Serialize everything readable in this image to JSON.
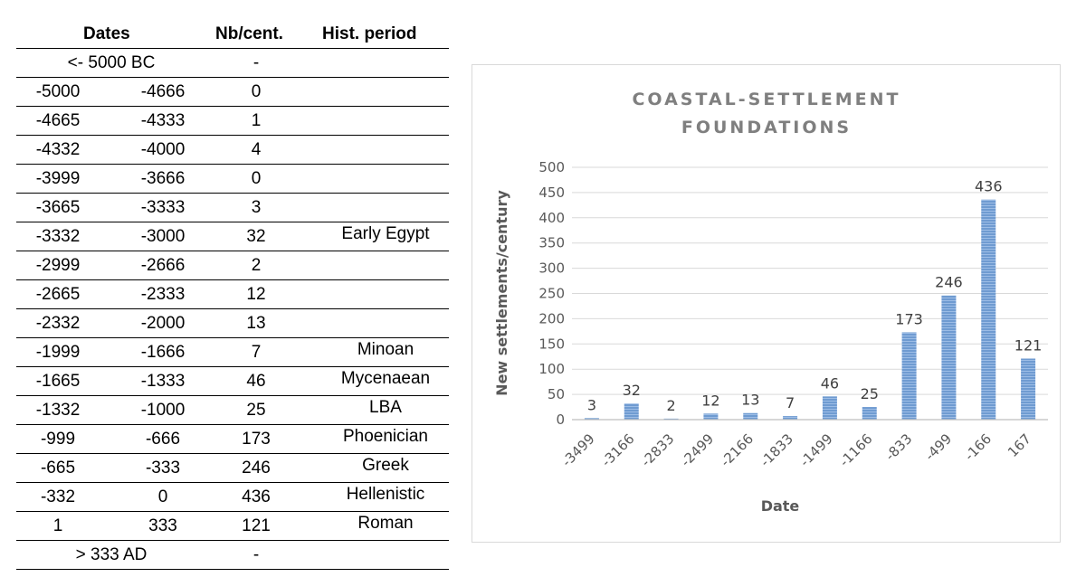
{
  "table": {
    "headers": {
      "dates": "Dates",
      "nb": "Nb/cent.",
      "period": "Hist. period"
    },
    "rows": [
      {
        "span": "<- 5000 BC",
        "nb": "-"
      },
      {
        "start": "-5000",
        "end": "-4666",
        "nb": "0",
        "period": ""
      },
      {
        "start": "-4665",
        "end": "-4333",
        "nb": "1",
        "period": ""
      },
      {
        "start": "-4332",
        "end": "-4000",
        "nb": "4",
        "period": ""
      },
      {
        "start": "-3999",
        "end": "-3666",
        "nb": "0",
        "period": ""
      },
      {
        "start": "-3665",
        "end": "-3333",
        "nb": "3",
        "period": ""
      },
      {
        "start": "-3332",
        "end": "-3000",
        "nb": "32",
        "period": "Early Egypt"
      },
      {
        "start": "-2999",
        "end": "-2666",
        "nb": "2",
        "period": ""
      },
      {
        "start": "-2665",
        "end": "-2333",
        "nb": "12",
        "period": ""
      },
      {
        "start": "-2332",
        "end": "-2000",
        "nb": "13",
        "period": ""
      },
      {
        "start": "-1999",
        "end": "-1666",
        "nb": "7",
        "period": "Minoan"
      },
      {
        "start": "-1665",
        "end": "-1333",
        "nb": "46",
        "period": "Mycenaean"
      },
      {
        "start": "-1332",
        "end": "-1000",
        "nb": "25",
        "period": "LBA"
      },
      {
        "start": "-999",
        "end": "-666",
        "nb": "173",
        "period": "Phoenician"
      },
      {
        "start": "-665",
        "end": "-333",
        "nb": "246",
        "period": "Greek"
      },
      {
        "start": "-332",
        "end": "0",
        "nb": "436",
        "period": "Hellenistic"
      },
      {
        "start": "1",
        "end": "333",
        "nb": "121",
        "period": "Roman"
      },
      {
        "span": "> 333 AD",
        "nb": "-"
      }
    ]
  },
  "chart_data": {
    "type": "bar",
    "title": "COASTAL-SETTLEMENT FOUNDATIONS",
    "title_lines": [
      "COASTAL-SETTLEMENT",
      "FOUNDATIONS"
    ],
    "xlabel": "Date",
    "ylabel": "New settlements/century",
    "categories": [
      "-3499",
      "-3166",
      "-2833",
      "-2499",
      "-2166",
      "-1833",
      "-1499",
      "-1166",
      "-833",
      "-499",
      "-166",
      "167"
    ],
    "values": [
      3,
      32,
      2,
      12,
      13,
      7,
      46,
      25,
      173,
      246,
      436,
      121
    ],
    "data_labels": [
      "3",
      "32",
      "2",
      "12",
      "13",
      "7",
      "46",
      "25",
      "173",
      "246",
      "436",
      "121"
    ],
    "yticks": [
      "0",
      "50",
      "100",
      "150",
      "200",
      "250",
      "300",
      "350",
      "400",
      "450",
      "500"
    ],
    "ylim": [
      0,
      500
    ],
    "grid": true,
    "legend": "none",
    "bar_color": "#6f9bd1"
  }
}
